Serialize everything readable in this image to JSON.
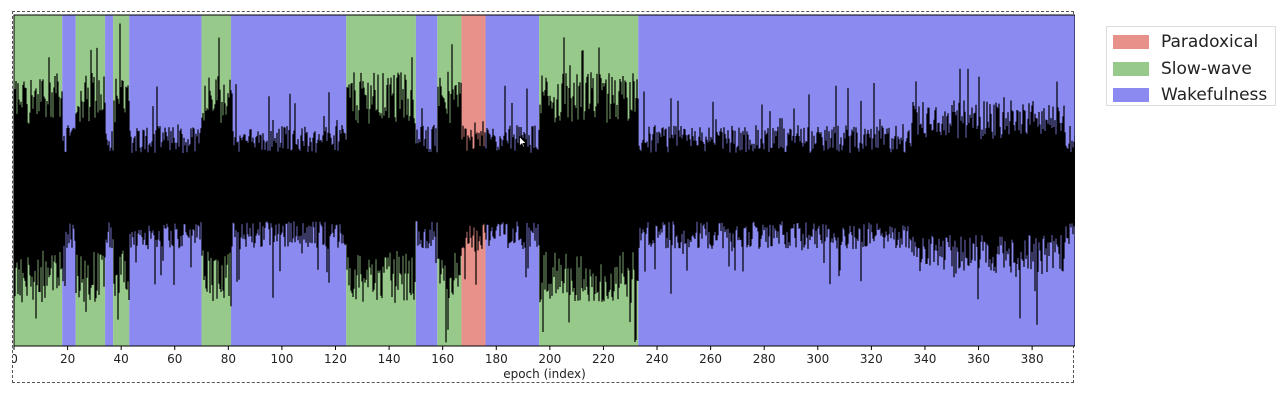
{
  "chart_data": {
    "type": "area",
    "xlabel": "epoch (index)",
    "xlim": [
      0,
      396
    ],
    "xticks": [
      0,
      20,
      40,
      60,
      80,
      100,
      120,
      140,
      160,
      180,
      200,
      220,
      240,
      260,
      280,
      300,
      320,
      340,
      360,
      380
    ],
    "legend_position": "upper-right-outside",
    "grid": false,
    "stages": [
      {
        "name": "Paradoxical",
        "color": "#e8908a"
      },
      {
        "name": "Slow-wave",
        "color": "#96c98a"
      },
      {
        "name": "Wakefulness",
        "color": "#8a8af0"
      }
    ],
    "segments": [
      {
        "start": 0,
        "end": 18,
        "stage": "Slow-wave"
      },
      {
        "start": 18,
        "end": 23,
        "stage": "Wakefulness"
      },
      {
        "start": 23,
        "end": 34,
        "stage": "Slow-wave"
      },
      {
        "start": 34,
        "end": 37,
        "stage": "Wakefulness"
      },
      {
        "start": 37,
        "end": 43,
        "stage": "Slow-wave"
      },
      {
        "start": 43,
        "end": 70,
        "stage": "Wakefulness"
      },
      {
        "start": 70,
        "end": 81,
        "stage": "Slow-wave"
      },
      {
        "start": 81,
        "end": 124,
        "stage": "Wakefulness"
      },
      {
        "start": 124,
        "end": 150,
        "stage": "Slow-wave"
      },
      {
        "start": 150,
        "end": 158,
        "stage": "Wakefulness"
      },
      {
        "start": 158,
        "end": 167,
        "stage": "Slow-wave"
      },
      {
        "start": 167,
        "end": 176,
        "stage": "Paradoxical"
      },
      {
        "start": 176,
        "end": 196,
        "stage": "Wakefulness"
      },
      {
        "start": 196,
        "end": 233,
        "stage": "Slow-wave"
      },
      {
        "start": 233,
        "end": 396,
        "stage": "Wakefulness"
      }
    ]
  }
}
